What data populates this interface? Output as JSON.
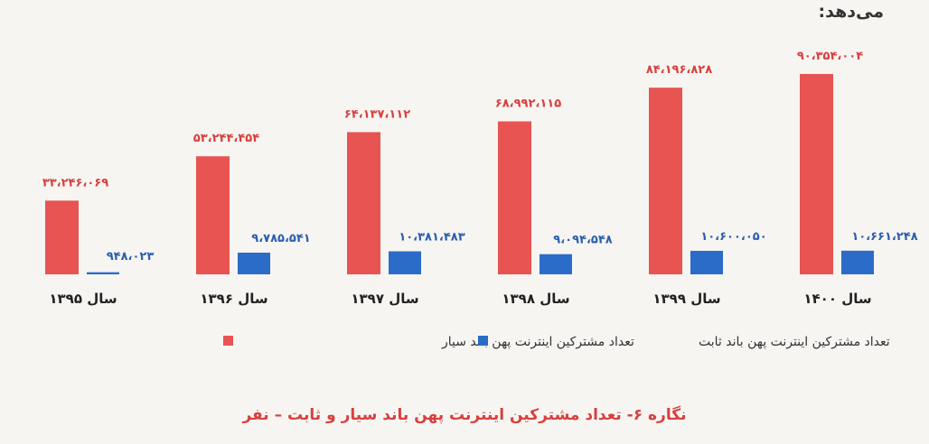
{
  "header": {
    "text": "می‌دهد:"
  },
  "caption": "نگاره ۶- تعداد مشترکین اینترنت پهن باند سیار و ثابت – نفر",
  "colors": {
    "mobile": "#e85451",
    "fixed": "#2a6cc7",
    "label_mobile": "#d8403d",
    "label_fixed": "#2a5fb0"
  },
  "chart_data": {
    "type": "bar",
    "title": "",
    "xlabel": "",
    "ylabel": "",
    "categories": [
      "سال ۱۳۹۵",
      "سال ۱۳۹۶",
      "سال ۱۳۹۷",
      "سال ۱۳۹۸",
      "سال ۱۳۹۹",
      "سال ۱۴۰۰"
    ],
    "series": [
      {
        "name": "تعداد مشترکین اینترنت پهن باند سیار",
        "values": [
          33246069,
          53244454,
          64137112,
          68992115,
          84196828,
          90354004
        ],
        "labels": [
          "۳۳،۲۴۶،۰۶۹",
          "۵۳،۲۴۴،۴۵۴",
          "۶۴،۱۳۷،۱۱۲",
          "۶۸،۹۹۲،۱۱۵",
          "۸۴،۱۹۶،۸۲۸",
          "۹۰،۳۵۴،۰۰۴"
        ]
      },
      {
        "name": "تعداد مشترکین اینترنت پهن باند ثابت",
        "values": [
          948023,
          9785541,
          10381483,
          9094548,
          10600050,
          10661248
        ],
        "labels": [
          "۹۴۸،۰۲۳",
          "۹،۷۸۵،۵۴۱",
          "۱۰،۳۸۱،۴۸۳",
          "۹،۰۹۴،۵۴۸",
          "۱۰،۶۰۰،۰۵۰",
          "۱۰،۶۶۱،۲۴۸"
        ]
      }
    ],
    "ylim": [
      0,
      90354004
    ],
    "grid": false,
    "legend_position": "bottom"
  }
}
